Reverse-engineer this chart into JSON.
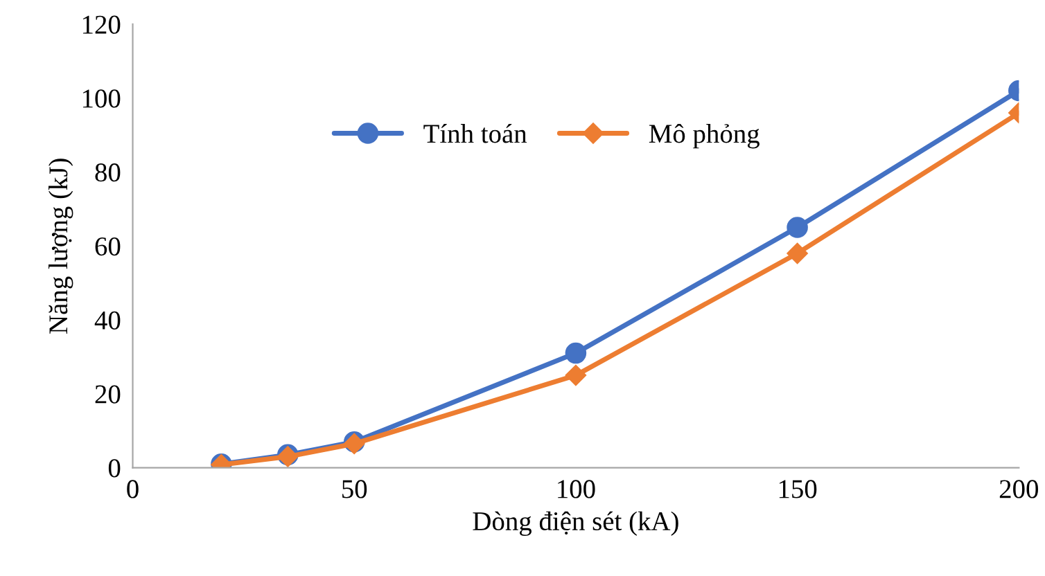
{
  "chart_data": {
    "type": "line",
    "xlabel": "Dòng điện sét (kA)",
    "ylabel": "Năng lượng (kJ)",
    "x": [
      20,
      35,
      50,
      100,
      150,
      200
    ],
    "series": [
      {
        "name": "Tính toán",
        "color": "#4472c4",
        "values": [
          1,
          3.5,
          7,
          31,
          65,
          102
        ],
        "marker": "circle"
      },
      {
        "name": "Mô phỏng",
        "color": "#ed7d31",
        "values": [
          0.8,
          3,
          6.5,
          25,
          58,
          96
        ],
        "marker": "diamond"
      }
    ],
    "xlim": [
      0,
      200
    ],
    "ylim": [
      0,
      120
    ],
    "xticks": [
      0,
      50,
      100,
      150,
      200
    ],
    "yticks": [
      0,
      20,
      40,
      60,
      80,
      100,
      120
    ],
    "grid": false,
    "legend": "top left",
    "line_style": "solid"
  }
}
